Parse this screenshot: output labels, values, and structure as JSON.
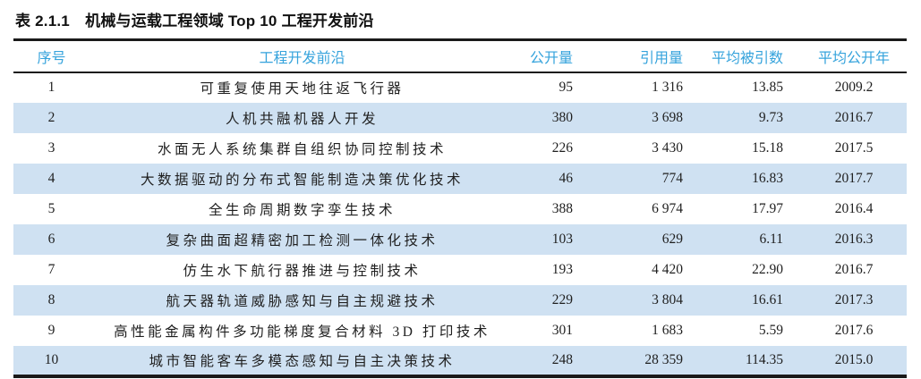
{
  "caption": "表 2.1.1　机械与运载工程领域 Top 10 工程开发前沿",
  "table": {
    "columns": [
      {
        "key": "no",
        "label": "序号"
      },
      {
        "key": "front",
        "label": "工程开发前沿"
      },
      {
        "key": "published",
        "label": "公开量"
      },
      {
        "key": "citations",
        "label": "引用量"
      },
      {
        "key": "avg_cited",
        "label": "平均被引数"
      },
      {
        "key": "avg_pub_year",
        "label": "平均公开年"
      }
    ],
    "rows": [
      [
        "1",
        "可重复使用天地往返飞行器",
        "95",
        "1 316",
        "13.85",
        "2009.2"
      ],
      [
        "2",
        "人机共融机器人开发",
        "380",
        "3 698",
        "9.73",
        "2016.7"
      ],
      [
        "3",
        "水面无人系统集群自组织协同控制技术",
        "226",
        "3 430",
        "15.18",
        "2017.5"
      ],
      [
        "4",
        "大数据驱动的分布式智能制造决策优化技术",
        "46",
        "774",
        "16.83",
        "2017.7"
      ],
      [
        "5",
        "全生命周期数字孪生技术",
        "388",
        "6 974",
        "17.97",
        "2016.4"
      ],
      [
        "6",
        "复杂曲面超精密加工检测一体化技术",
        "103",
        "629",
        "6.11",
        "2016.3"
      ],
      [
        "7",
        "仿生水下航行器推进与控制技术",
        "193",
        "4 420",
        "22.90",
        "2016.7"
      ],
      [
        "8",
        "航天器轨道威胁感知与自主规避技术",
        "229",
        "3 804",
        "16.61",
        "2017.3"
      ],
      [
        "9",
        "高性能金属构件多功能梯度复合材料 3D 打印技术",
        "301",
        "1 683",
        "5.59",
        "2017.6"
      ],
      [
        "10",
        "城市智能客车多模态感知与自主决策技术",
        "248",
        "28 359",
        "114.35",
        "2015.0"
      ]
    ]
  },
  "colors": {
    "header_text": "#35A3DC",
    "row_band": "#CFE1F2",
    "rule": "#1A1A1A"
  }
}
